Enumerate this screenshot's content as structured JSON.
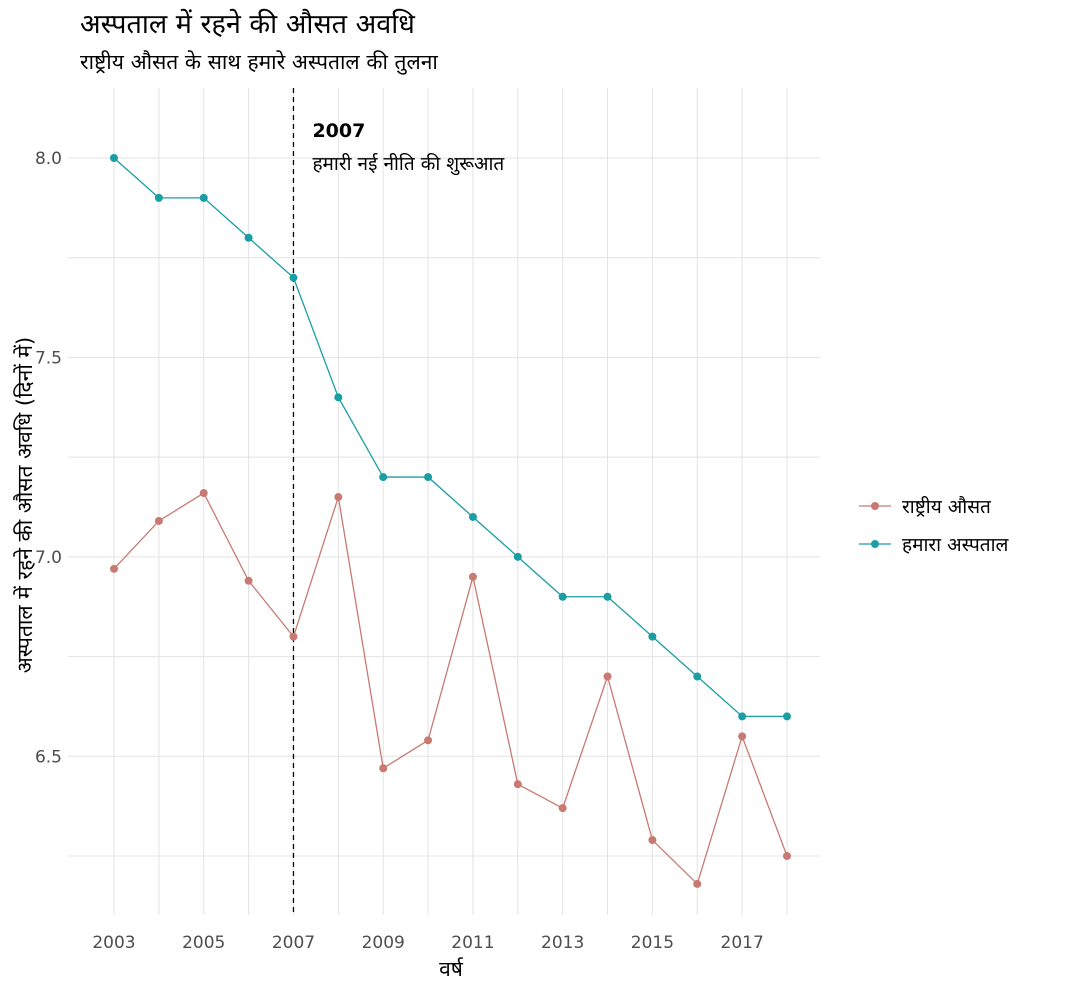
{
  "chart_data": {
    "type": "line",
    "title": "अस्पताल में रहने की औसत अवधि",
    "subtitle": "राष्ट्रीय औसत के साथ हमारे अस्पताल की तुलना",
    "xlabel": "वर्ष",
    "ylabel": "अस्पताल में रहने की औसत अवधि (दिनों में)",
    "x": [
      2003,
      2004,
      2005,
      2006,
      2007,
      2008,
      2009,
      2010,
      2011,
      2012,
      2013,
      2014,
      2015,
      2016,
      2017,
      2018
    ],
    "xlim": [
      2003,
      2018
    ],
    "ylim": [
      6.25,
      8.0
    ],
    "x_ticks": [
      "2003",
      "2005",
      "2007",
      "2009",
      "2011",
      "2013",
      "2015",
      "2017"
    ],
    "y_ticks": [
      "6.5",
      "7.0",
      "7.5",
      "8.0"
    ],
    "grid": true,
    "legend_position": "right",
    "series": [
      {
        "name": "राष्ट्रीय औसत",
        "color": "#c87a72",
        "values": [
          6.97,
          7.09,
          7.16,
          6.94,
          6.8,
          7.15,
          6.47,
          6.54,
          6.95,
          6.43,
          6.37,
          6.7,
          6.29,
          6.18,
          6.55,
          6.25
        ]
      },
      {
        "name": "हमारा अस्पताल",
        "color": "#1a9ea3",
        "values": [
          8.0,
          7.9,
          7.9,
          7.8,
          7.7,
          7.4,
          7.2,
          7.2,
          7.1,
          7.0,
          6.9,
          6.9,
          6.8,
          6.7,
          6.6,
          6.6
        ]
      }
    ],
    "annotation": {
      "x": 2007,
      "year_label": "2007",
      "text": "हमारी नई नीति की शुरूआत"
    }
  }
}
